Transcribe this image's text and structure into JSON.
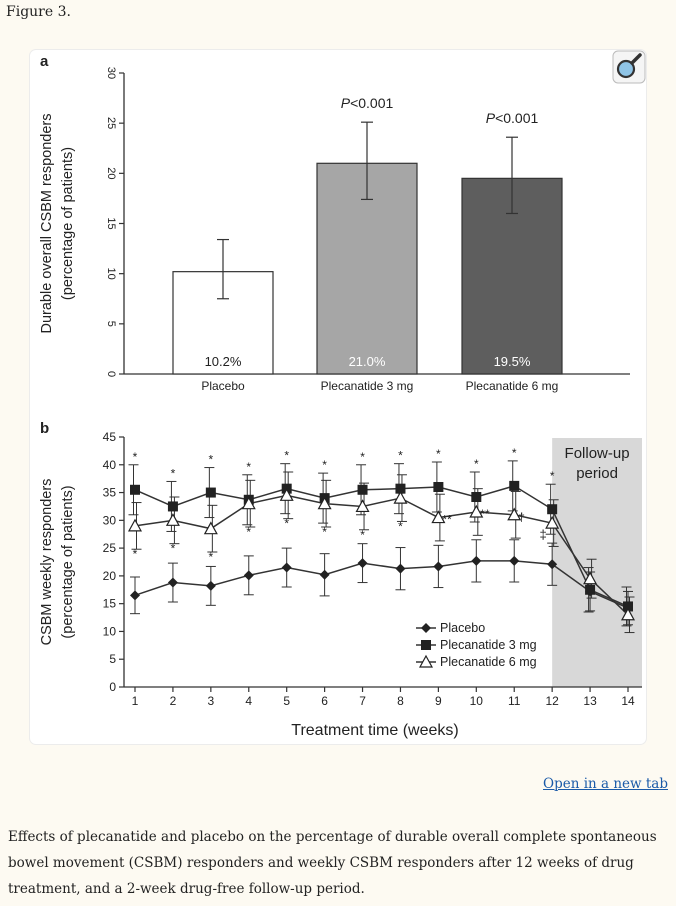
{
  "figure_label": "Figure 3.",
  "open_link": "Open in a new tab",
  "caption": "Effects of plecanatide and placebo on the percentage of durable overall complete spontaneous bowel movement (CSBM) responders and weekly CSBM responders after 12 weeks of drug treatment, and a 2-week drug-free follow-up period.",
  "icons": {
    "magnify": "magnifying-glass-icon"
  },
  "colors": {
    "placebo_bar": "#ffffff",
    "p3_bar": "#a6a6a6",
    "p6_bar": "#5e5e5e",
    "followup_bg": "#d8d8d8",
    "link": "#1a5aa8"
  },
  "chart_data": [
    {
      "type": "bar",
      "panel_label": "a",
      "title": "",
      "ylabel": "Durable overall CSBM responders (percentage of patients)",
      "ylabel_lines": [
        "Durable overall CSBM responders",
        "(percentage of patients)"
      ],
      "xlabel": "",
      "ylim": [
        0,
        30
      ],
      "yticks": [
        0,
        5,
        10,
        15,
        20,
        25,
        30
      ],
      "categories": [
        "Placebo",
        "Plecanatide 3 mg",
        "Plecanatide 6 mg"
      ],
      "values": [
        10.2,
        21.0,
        19.5
      ],
      "value_labels": [
        "10.2%",
        "21.0%",
        "19.5%"
      ],
      "error_bars": [
        [
          7.5,
          13.4
        ],
        [
          17.4,
          25.1
        ],
        [
          16.0,
          23.6
        ]
      ],
      "annotations": [
        "",
        "P<0.001",
        "P<0.001"
      ]
    },
    {
      "type": "line",
      "panel_label": "b",
      "title": "",
      "ylabel": "CSBM weekly responders (percentage of patients)",
      "ylabel_lines": [
        "CSBM weekly responders",
        "(percentage of patients)"
      ],
      "xlabel": "Treatment time (weeks)",
      "ylim": [
        0,
        45
      ],
      "yticks": [
        0,
        5,
        10,
        15,
        20,
        25,
        30,
        35,
        40,
        45
      ],
      "x": [
        1,
        2,
        3,
        4,
        5,
        6,
        7,
        8,
        9,
        10,
        11,
        12,
        13,
        14
      ],
      "shaded_region": {
        "from": 12,
        "to": 14,
        "label_lines": [
          "Follow-up",
          "period"
        ]
      },
      "legend_position": "bottom-right",
      "series": [
        {
          "name": "Placebo",
          "marker": "diamond",
          "values": [
            16.5,
            18.8,
            18.2,
            20.1,
            21.5,
            20.2,
            22.3,
            21.3,
            21.7,
            22.7,
            22.7,
            22.1,
            17.2,
            14.2
          ],
          "err": [
            3.3,
            3.5,
            3.5,
            3.5,
            3.5,
            3.8,
            3.5,
            3.8,
            3.8,
            3.8,
            3.8,
            3.8,
            3.5,
            3.0
          ]
        },
        {
          "name": "Plecanatide 3 mg",
          "marker": "square",
          "values": [
            35.5,
            32.5,
            35.0,
            33.7,
            35.7,
            34.0,
            35.5,
            35.7,
            36.0,
            34.2,
            36.2,
            32.0,
            17.5,
            14.5
          ],
          "err": [
            4.5,
            4.5,
            4.5,
            4.5,
            4.5,
            4.5,
            4.5,
            4.5,
            4.5,
            4.5,
            4.5,
            4.5,
            4.0,
            3.5
          ]
        },
        {
          "name": "Plecanatide 6 mg",
          "marker": "triangle-open",
          "values": [
            29.0,
            30.0,
            28.5,
            33.0,
            34.5,
            33.0,
            32.5,
            34.0,
            30.5,
            31.5,
            31.0,
            29.5,
            19.5,
            13.0
          ],
          "err": [
            4.2,
            4.2,
            4.2,
            4.2,
            4.2,
            4.2,
            4.2,
            4.2,
            4.2,
            4.2,
            4.2,
            4.2,
            3.5,
            3.2
          ]
        }
      ],
      "significance_upper": [
        "*",
        "*",
        "*",
        "*",
        "*",
        "*",
        "*",
        "*",
        "*",
        "*",
        "*",
        "*",
        "",
        ""
      ],
      "significance_lower": [
        "*",
        "*",
        "*",
        "*",
        "*",
        "*",
        "*",
        "*",
        "**",
        "**",
        "†",
        "‡",
        "",
        ""
      ]
    }
  ]
}
